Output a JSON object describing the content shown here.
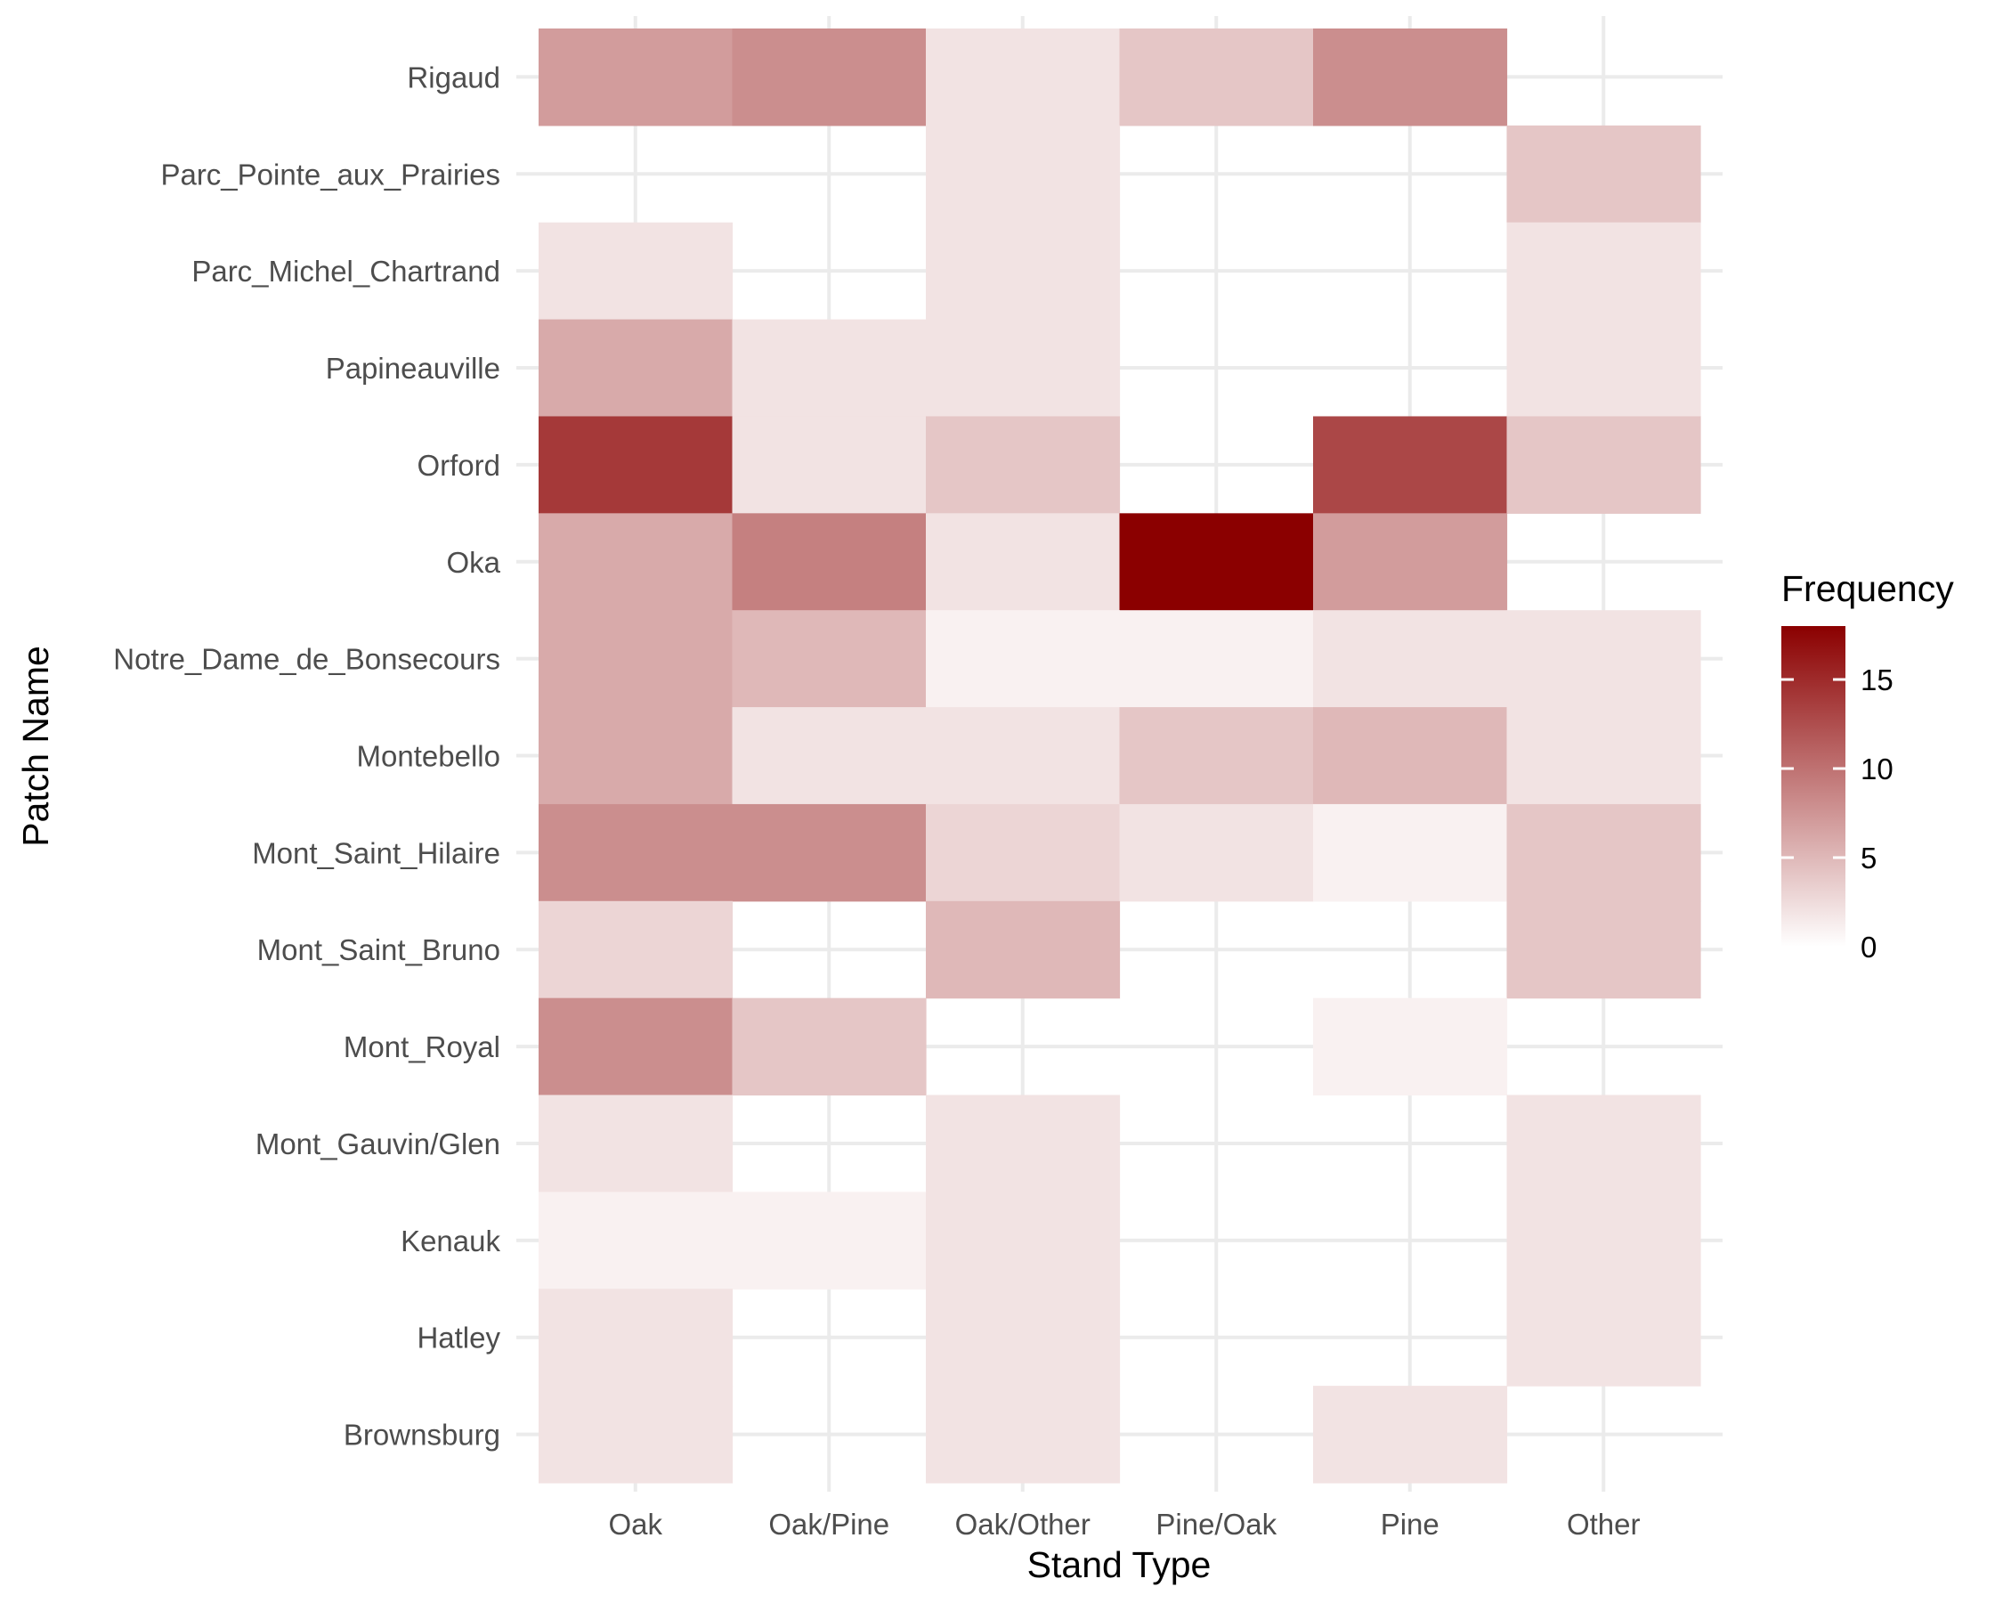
{
  "chart_data": {
    "type": "heatmap",
    "xlabel": "Stand Type",
    "ylabel": "Patch Name",
    "x_categories": [
      "Oak",
      "Oak/Pine",
      "Oak/Other",
      "Pine/Oak",
      "Pine",
      "Other"
    ],
    "y_categories": [
      "Brownsburg",
      "Hatley",
      "Kenauk",
      "Mont_Gauvin/Glen ",
      "Mont_Royal",
      "Mont_Saint_Bruno",
      "Mont_Saint_Hilaire",
      "Montebello",
      "Notre_Dame_de_Bonsecours",
      "Oka",
      "Orford",
      "Papineauville",
      "Parc_Michel_Chartrand",
      "Parc_Pointe_aux_Prairies",
      "Rigaud"
    ],
    "cells": [
      {
        "x": "Oak",
        "y": "Rigaud",
        "value": 7
      },
      {
        "x": "Oak/Pine",
        "y": "Rigaud",
        "value": 8
      },
      {
        "x": "Oak/Other",
        "y": "Rigaud",
        "value": 2
      },
      {
        "x": "Pine/Oak",
        "y": "Rigaud",
        "value": 4
      },
      {
        "x": "Pine",
        "y": "Rigaud",
        "value": 8
      },
      {
        "x": "Oak/Other",
        "y": "Parc_Pointe_aux_Prairies",
        "value": 2
      },
      {
        "x": "Other",
        "y": "Parc_Pointe_aux_Prairies",
        "value": 4
      },
      {
        "x": "Oak",
        "y": "Parc_Michel_Chartrand",
        "value": 2
      },
      {
        "x": "Oak/Other",
        "y": "Parc_Michel_Chartrand",
        "value": 2
      },
      {
        "x": "Other",
        "y": "Parc_Michel_Chartrand",
        "value": 2
      },
      {
        "x": "Oak",
        "y": "Papineauville",
        "value": 6
      },
      {
        "x": "Oak/Pine",
        "y": "Papineauville",
        "value": 2
      },
      {
        "x": "Oak/Other",
        "y": "Papineauville",
        "value": 2
      },
      {
        "x": "Other",
        "y": "Papineauville",
        "value": 2
      },
      {
        "x": "Oak",
        "y": "Orford",
        "value": 14
      },
      {
        "x": "Oak/Pine",
        "y": "Orford",
        "value": 2
      },
      {
        "x": "Oak/Other",
        "y": "Orford",
        "value": 4
      },
      {
        "x": "Pine",
        "y": "Orford",
        "value": 13
      },
      {
        "x": "Other",
        "y": "Orford",
        "value": 4
      },
      {
        "x": "Oak",
        "y": "Oka",
        "value": 6
      },
      {
        "x": "Oak/Pine",
        "y": "Oka",
        "value": 9
      },
      {
        "x": "Oak/Other",
        "y": "Oka",
        "value": 2
      },
      {
        "x": "Pine/Oak",
        "y": "Oka",
        "value": 18
      },
      {
        "x": "Pine",
        "y": "Oka",
        "value": 7
      },
      {
        "x": "Oak",
        "y": "Notre_Dame_de_Bonsecours",
        "value": 6
      },
      {
        "x": "Oak/Pine",
        "y": "Notre_Dame_de_Bonsecours",
        "value": 5
      },
      {
        "x": "Oak/Other",
        "y": "Notre_Dame_de_Bonsecours",
        "value": 1
      },
      {
        "x": "Pine/Oak",
        "y": "Notre_Dame_de_Bonsecours",
        "value": 1
      },
      {
        "x": "Pine",
        "y": "Notre_Dame_de_Bonsecours",
        "value": 2
      },
      {
        "x": "Other",
        "y": "Notre_Dame_de_Bonsecours",
        "value": 2
      },
      {
        "x": "Oak",
        "y": "Montebello",
        "value": 6
      },
      {
        "x": "Oak/Pine",
        "y": "Montebello",
        "value": 2
      },
      {
        "x": "Oak/Other",
        "y": "Montebello",
        "value": 2
      },
      {
        "x": "Pine/Oak",
        "y": "Montebello",
        "value": 4
      },
      {
        "x": "Pine",
        "y": "Montebello",
        "value": 5
      },
      {
        "x": "Other",
        "y": "Montebello",
        "value": 2
      },
      {
        "x": "Oak",
        "y": "Mont_Saint_Hilaire",
        "value": 8
      },
      {
        "x": "Oak/Pine",
        "y": "Mont_Saint_Hilaire",
        "value": 8
      },
      {
        "x": "Oak/Other",
        "y": "Mont_Saint_Hilaire",
        "value": 3
      },
      {
        "x": "Pine/Oak",
        "y": "Mont_Saint_Hilaire",
        "value": 2
      },
      {
        "x": "Pine",
        "y": "Mont_Saint_Hilaire",
        "value": 1
      },
      {
        "x": "Other",
        "y": "Mont_Saint_Hilaire",
        "value": 4
      },
      {
        "x": "Oak",
        "y": "Mont_Saint_Bruno",
        "value": 3
      },
      {
        "x": "Oak/Other",
        "y": "Mont_Saint_Bruno",
        "value": 5
      },
      {
        "x": "Other",
        "y": "Mont_Saint_Bruno",
        "value": 4
      },
      {
        "x": "Oak",
        "y": "Mont_Royal",
        "value": 8
      },
      {
        "x": "Oak/Pine",
        "y": "Mont_Royal",
        "value": 4
      },
      {
        "x": "Pine",
        "y": "Mont_Royal",
        "value": 1
      },
      {
        "x": "Oak",
        "y": "Mont_Gauvin/Glen ",
        "value": 2
      },
      {
        "x": "Oak/Other",
        "y": "Mont_Gauvin/Glen ",
        "value": 2
      },
      {
        "x": "Other",
        "y": "Mont_Gauvin/Glen ",
        "value": 2
      },
      {
        "x": "Oak",
        "y": "Kenauk",
        "value": 1
      },
      {
        "x": "Oak/Pine",
        "y": "Kenauk",
        "value": 1
      },
      {
        "x": "Oak/Other",
        "y": "Kenauk",
        "value": 2
      },
      {
        "x": "Other",
        "y": "Kenauk",
        "value": 2
      },
      {
        "x": "Oak",
        "y": "Hatley",
        "value": 2
      },
      {
        "x": "Oak/Other",
        "y": "Hatley",
        "value": 2
      },
      {
        "x": "Other",
        "y": "Hatley",
        "value": 2
      },
      {
        "x": "Oak",
        "y": "Brownsburg",
        "value": 2
      },
      {
        "x": "Oak/Other",
        "y": "Brownsburg",
        "value": 2
      },
      {
        "x": "Pine",
        "y": "Brownsburg",
        "value": 2
      }
    ],
    "legend": {
      "title": "Frequency",
      "placement": "right",
      "ticks": [
        0,
        5,
        10,
        15
      ],
      "range": [
        0,
        18
      ],
      "low_color": "#ffffff",
      "high_color": "#8b0000"
    },
    "grid": true
  }
}
